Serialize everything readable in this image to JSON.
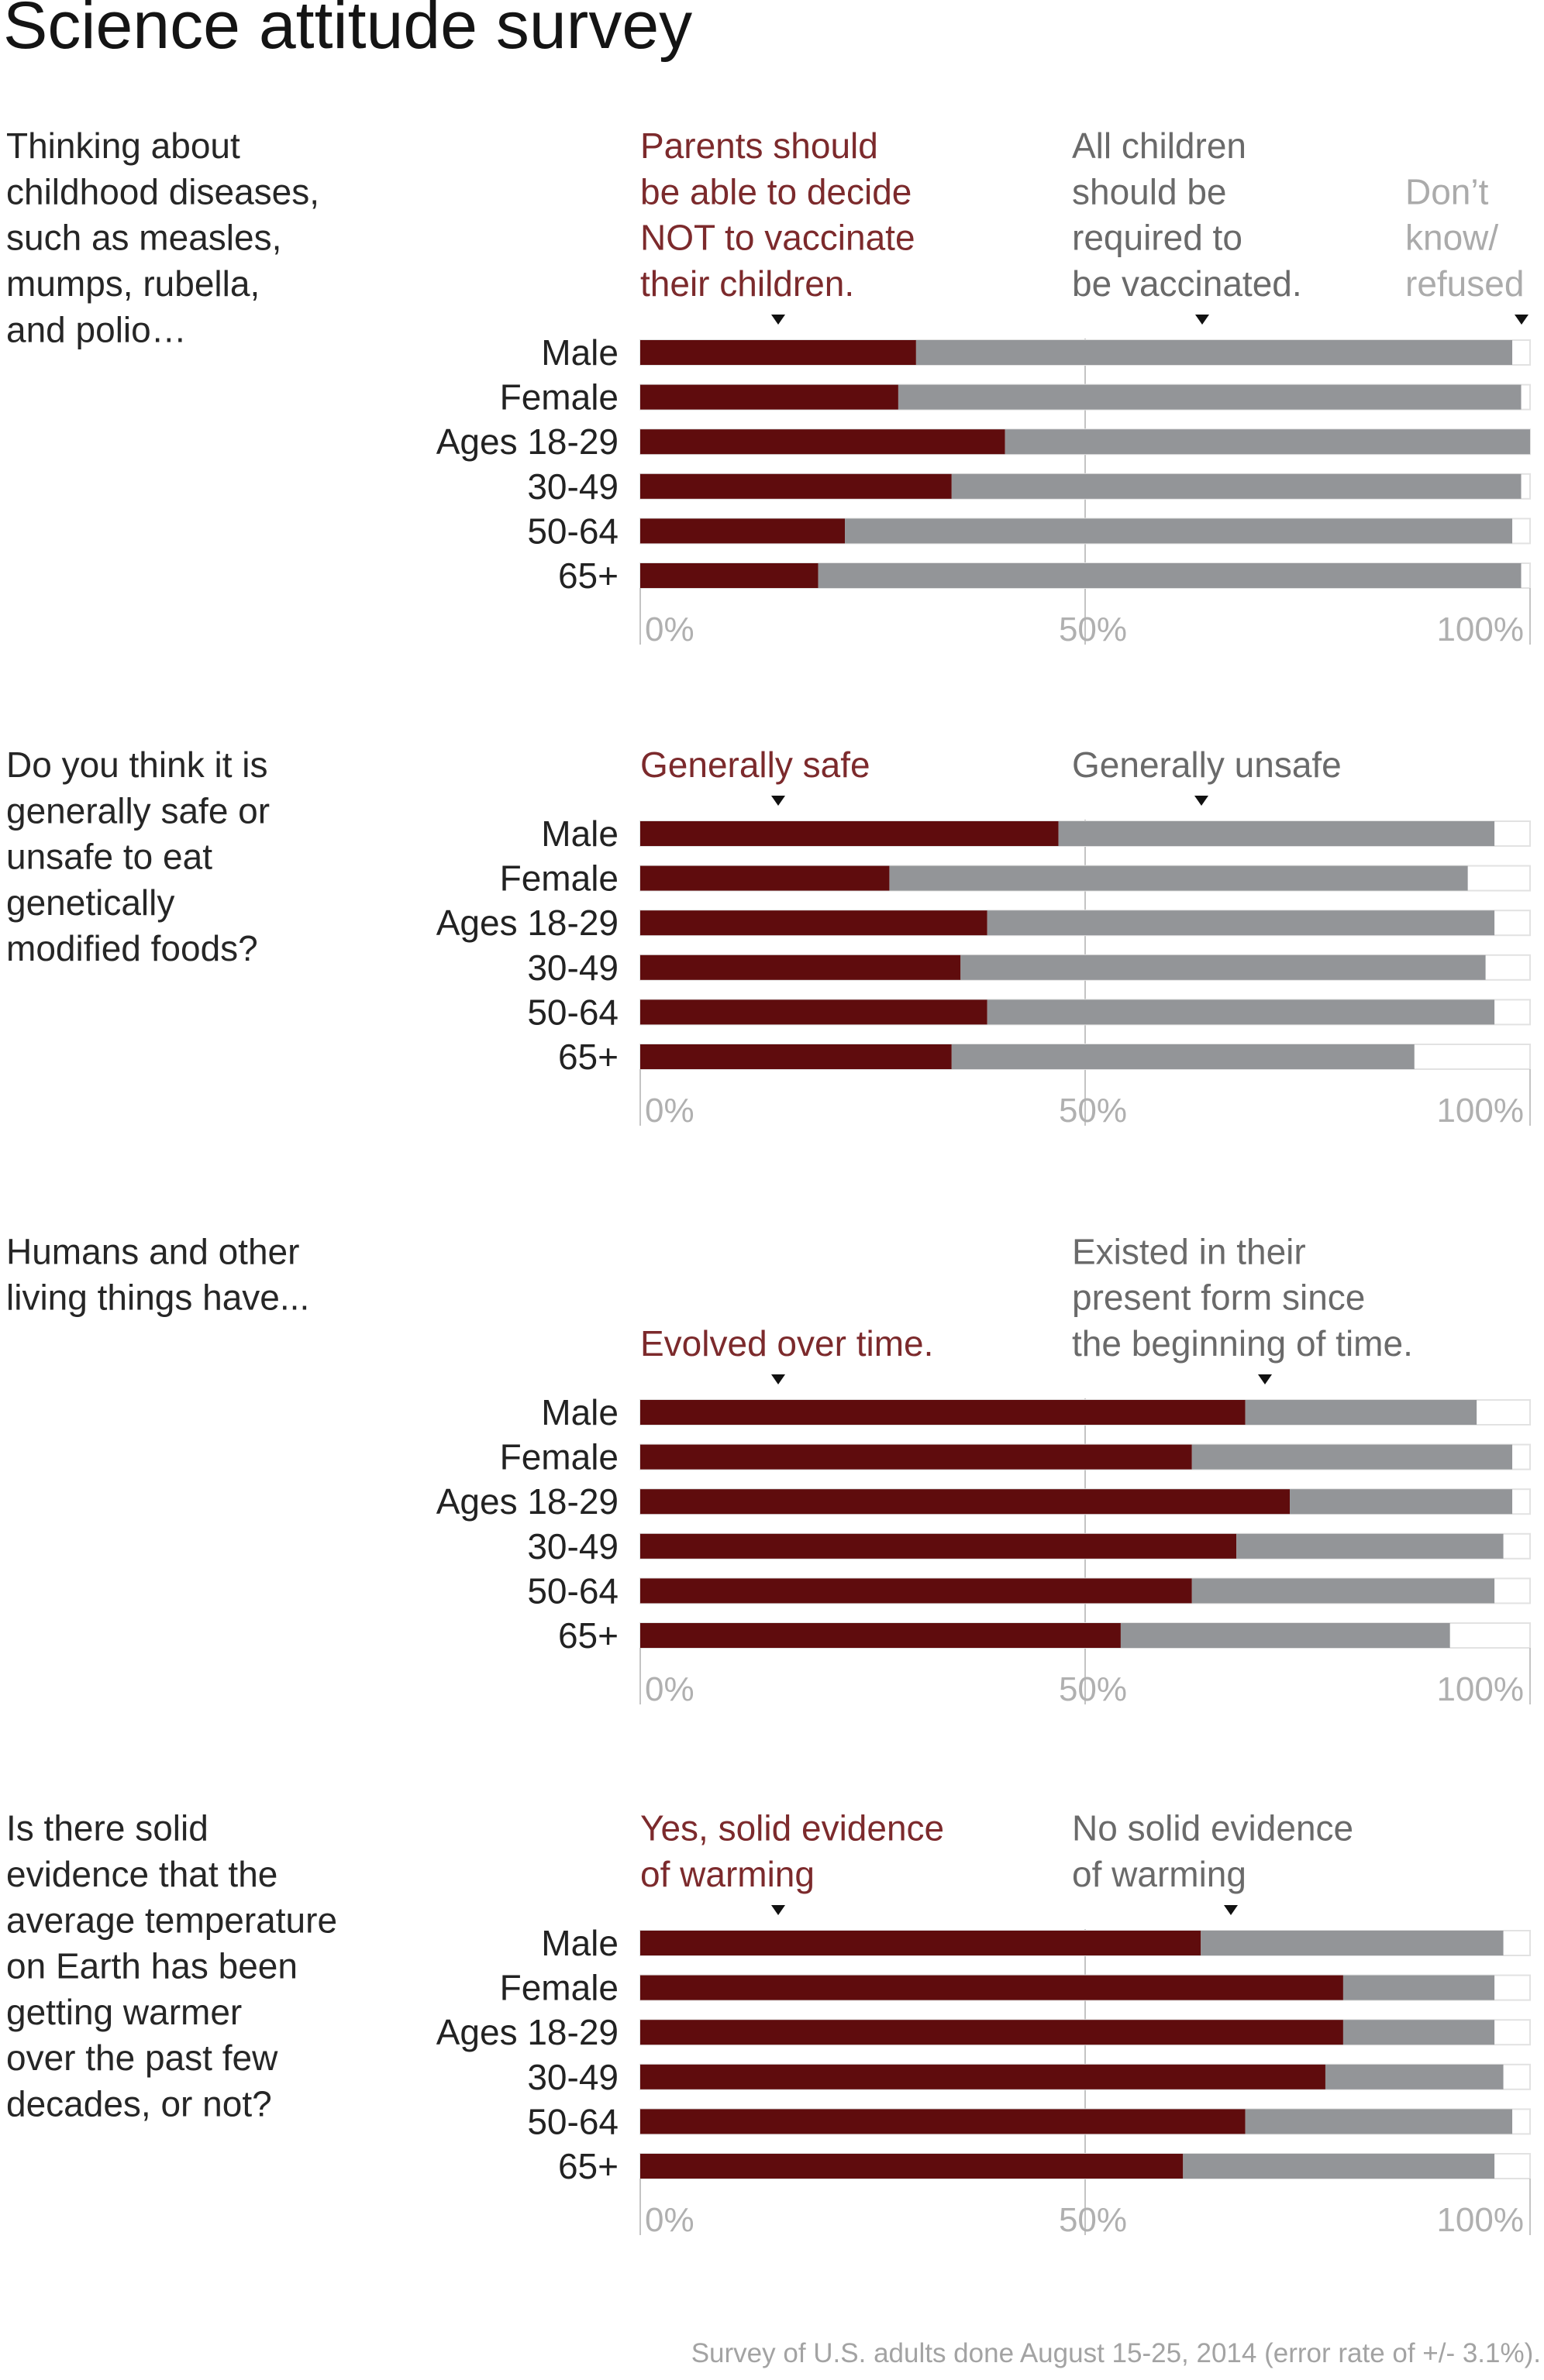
{
  "title": "Science attitude survey",
  "footer": "Survey of U.S. adults done August 15-25, 2014 (error rate of +/- 3.1%).",
  "colors": {
    "series_primary": "#5f0c0d",
    "series_secondary": "#939598",
    "remainder_fill": "#ffffff",
    "remainder_stroke": "#e2e2e2",
    "gridline": "#c4c4c4"
  },
  "chart_data": [
    {
      "type": "bar",
      "orientation": "horizontal",
      "stacked": true,
      "question": [
        "Thinking about",
        "childhood diseases,",
        "such as measles,",
        "mumps, rubella,",
        "and polio…"
      ],
      "categories": [
        "Male",
        "Female",
        "Ages 18-29",
        "30-49",
        "50-64",
        "65+"
      ],
      "series": [
        {
          "name": "Parents should be able to decide NOT to vaccinate their children.",
          "label_lines": [
            "Parents should",
            "be able to decide",
            "NOT to vaccinate",
            "their children."
          ],
          "values": [
            31,
            29,
            41,
            35,
            23,
            20
          ]
        },
        {
          "name": "All children should be required to be vaccinated.",
          "label_lines": [
            "All children",
            "should be",
            "required to",
            "be vaccinated."
          ],
          "values": [
            67,
            70,
            59,
            64,
            75,
            79
          ]
        },
        {
          "name": "Don’t know/ refused",
          "label_lines": [
            "Don’t",
            "know/",
            "refused"
          ],
          "values": [
            2,
            1,
            0,
            1,
            2,
            1
          ]
        }
      ],
      "xlim": [
        0,
        100
      ],
      "xticks": [
        "0%",
        "50%",
        "100%"
      ],
      "grid": true
    },
    {
      "type": "bar",
      "orientation": "horizontal",
      "stacked": true,
      "question": [
        "Do you think it is",
        "generally safe or",
        "unsafe to eat",
        "genetically",
        "modified foods?"
      ],
      "categories": [
        "Male",
        "Female",
        "Ages 18-29",
        "30-49",
        "50-64",
        "65+"
      ],
      "series": [
        {
          "name": "Generally safe",
          "label_lines": [
            "Generally safe"
          ],
          "values": [
            47,
            28,
            39,
            36,
            39,
            35
          ]
        },
        {
          "name": "Generally unsafe",
          "label_lines": [
            "Generally unsafe"
          ],
          "values": [
            49,
            65,
            57,
            59,
            57,
            52
          ]
        }
      ],
      "xlim": [
        0,
        100
      ],
      "xticks": [
        "0%",
        "50%",
        "100%"
      ],
      "grid": true
    },
    {
      "type": "bar",
      "orientation": "horizontal",
      "stacked": true,
      "question": [
        "Humans and other",
        "living things have..."
      ],
      "categories": [
        "Male",
        "Female",
        "Ages 18-29",
        "30-49",
        "50-64",
        "65+"
      ],
      "series": [
        {
          "name": "Evolved over time.",
          "label_lines": [
            "Evolved over time."
          ],
          "values": [
            68,
            62,
            73,
            67,
            62,
            54
          ]
        },
        {
          "name": "Existed in their present form since the beginning of time.",
          "label_lines": [
            "Existed in their",
            "present form since",
            "the beginning of time."
          ],
          "values": [
            26,
            36,
            25,
            30,
            34,
            37
          ]
        }
      ],
      "xlim": [
        0,
        100
      ],
      "xticks": [
        "0%",
        "50%",
        "100%"
      ],
      "grid": true
    },
    {
      "type": "bar",
      "orientation": "horizontal",
      "stacked": true,
      "question": [
        "Is there solid",
        "evidence that the",
        "average temperature",
        "on Earth has been",
        "getting warmer",
        "over the past few",
        "decades, or not?"
      ],
      "categories": [
        "Male",
        "Female",
        "Ages 18-29",
        "30-49",
        "50-64",
        "65+"
      ],
      "series": [
        {
          "name": "Yes, solid evidence of warming",
          "label_lines": [
            "Yes, solid evidence",
            "of warming"
          ],
          "values": [
            63,
            79,
            79,
            77,
            68,
            61
          ]
        },
        {
          "name": "No solid evidence of warming",
          "label_lines": [
            "No solid evidence",
            "of warming"
          ],
          "values": [
            34,
            17,
            17,
            20,
            30,
            35
          ]
        }
      ],
      "xlim": [
        0,
        100
      ],
      "xticks": [
        "0%",
        "50%",
        "100%"
      ],
      "grid": true
    }
  ]
}
